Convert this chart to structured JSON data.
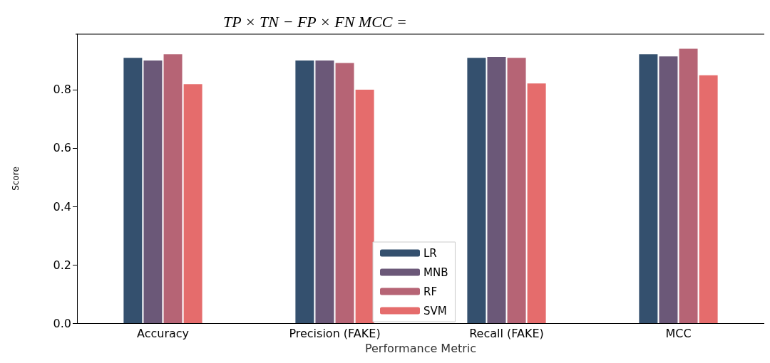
{
  "chart_data": {
    "type": "bar",
    "title": "TP × TN − FP × FN MCC =",
    "xlabel": "Performance Metric",
    "ylabel": "Score",
    "categories": [
      "Accuracy",
      "Precision (FAKE)",
      "Recall (FAKE)",
      "MCC"
    ],
    "series": [
      {
        "name": "LR",
        "color": "#34506e",
        "values": [
          0.909,
          0.9,
          0.909,
          0.921
        ]
      },
      {
        "name": "MNB",
        "color": "#6b5878",
        "values": [
          0.9,
          0.9,
          0.912,
          0.914
        ]
      },
      {
        "name": "RF",
        "color": "#b66475",
        "values": [
          0.921,
          0.891,
          0.909,
          0.94
        ]
      },
      {
        "name": "SVM",
        "color": "#e56c6c",
        "values": [
          0.819,
          0.8,
          0.821,
          0.849
        ]
      }
    ],
    "ylim": [
      0,
      0.99
    ],
    "yticks": [
      {
        "value": 0,
        "label": "0.0"
      },
      0.2,
      0.4,
      0.6,
      0.8
    ],
    "grid": false,
    "legend": "bottom"
  }
}
